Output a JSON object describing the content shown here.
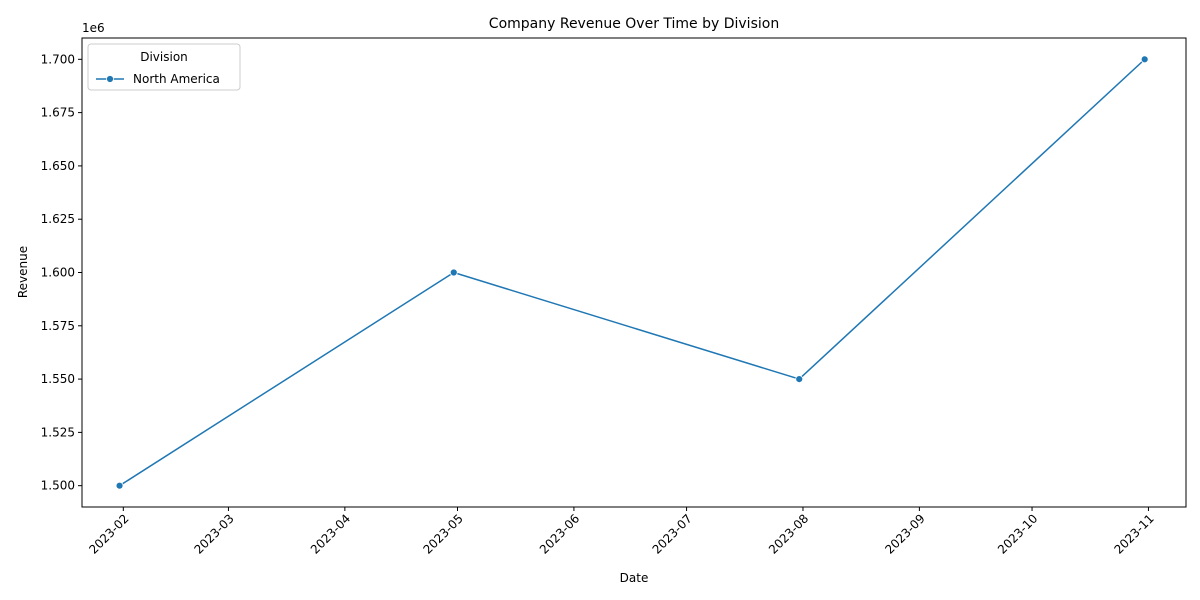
{
  "chart_data": {
    "type": "line",
    "title": "Company Revenue Over Time by Division",
    "xlabel": "Date",
    "ylabel": "Revenue",
    "y_offset_label": "1e6",
    "x_ticks": [
      "2023-02",
      "2023-03",
      "2023-04",
      "2023-05",
      "2023-06",
      "2023-07",
      "2023-08",
      "2023-09",
      "2023-10",
      "2023-11"
    ],
    "y_ticks": [
      "1.500",
      "1.525",
      "1.550",
      "1.575",
      "1.600",
      "1.625",
      "1.650",
      "1.675",
      "1.700"
    ],
    "ylim": [
      1490000,
      1710000
    ],
    "xlim": [
      "2023-01-21",
      "2023-11-11"
    ],
    "grid": false,
    "legend": {
      "title": "Division",
      "placement": "top-left"
    },
    "series": [
      {
        "name": "North America",
        "color": "#1f77b4",
        "marker": "circle",
        "points": [
          {
            "x": "2023-01-31",
            "y": 1500000
          },
          {
            "x": "2023-04-30",
            "y": 1600000
          },
          {
            "x": "2023-07-31",
            "y": 1550000
          },
          {
            "x": "2023-10-31",
            "y": 1700000
          }
        ]
      }
    ]
  }
}
